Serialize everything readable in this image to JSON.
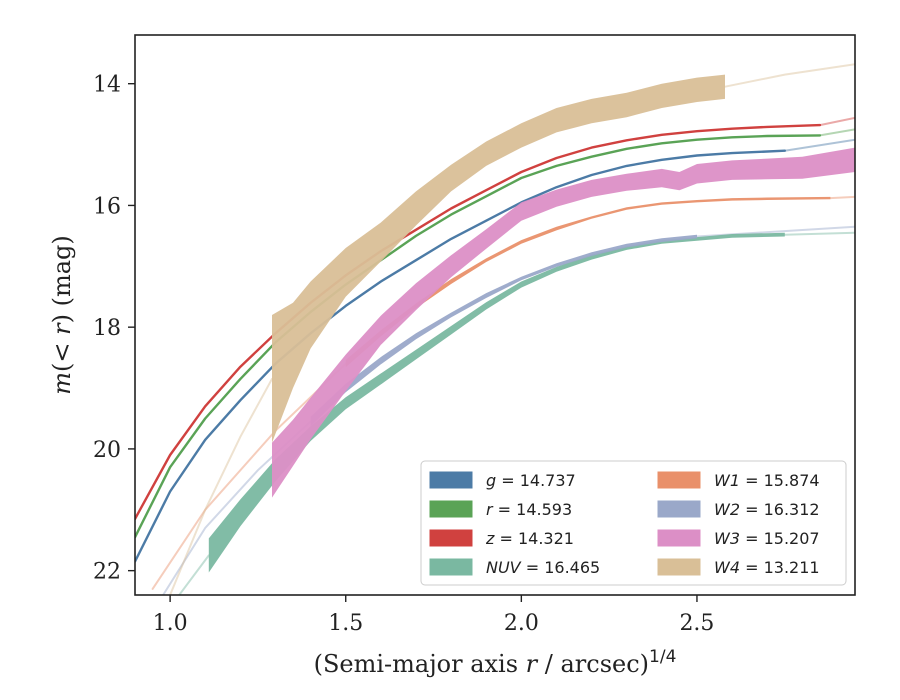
{
  "chart_data": {
    "type": "line",
    "xlabel": "(Semi-major axis r / arcsec)^{1/4}",
    "xlabel_main": "(Semi-major axis ",
    "xlabel_var": "r",
    "xlabel_unit": " / arcsec)",
    "xlabel_sup": "1/4",
    "ylabel": "m(< r) (mag)",
    "ylabel_main": "m",
    "ylabel_paren": "(< ",
    "ylabel_var": "r",
    "ylabel_rest": ") (mag)",
    "xlim": [
      0.9,
      2.95
    ],
    "ylim": [
      22.4,
      13.2
    ],
    "y_inverted": true,
    "x_ticks": [
      1.0,
      1.5,
      2.0,
      2.5
    ],
    "x_tick_labels": [
      "1.0",
      "1.5",
      "2.0",
      "2.5"
    ],
    "y_ticks": [
      14,
      16,
      18,
      20,
      22
    ],
    "y_tick_labels": [
      "14",
      "16",
      "18",
      "20",
      "22"
    ],
    "grid": false,
    "legend_position": "lower-right",
    "series": [
      {
        "name": "g = 14.737",
        "band": "g",
        "mag": "14.737",
        "color": "#4c7ba6",
        "x": [
          0.9,
          1.0,
          1.1,
          1.2,
          1.3,
          1.4,
          1.5,
          1.6,
          1.7,
          1.8,
          1.9,
          2.0,
          2.1,
          2.2,
          2.3,
          2.4,
          2.5,
          2.6,
          2.75
        ],
        "y": [
          21.85,
          20.7,
          19.85,
          19.2,
          18.6,
          18.1,
          17.65,
          17.25,
          16.9,
          16.55,
          16.25,
          15.95,
          15.7,
          15.5,
          15.35,
          15.25,
          15.18,
          15.14,
          15.1
        ],
        "faint_x": [
          2.75,
          2.95
        ],
        "faint_y": [
          15.1,
          14.92
        ]
      },
      {
        "name": "r = 14.593",
        "band": "r",
        "mag": "14.593",
        "color": "#5aa356",
        "x": [
          0.9,
          1.0,
          1.1,
          1.2,
          1.3,
          1.4,
          1.5,
          1.6,
          1.7,
          1.8,
          1.9,
          2.0,
          2.1,
          2.2,
          2.3,
          2.4,
          2.5,
          2.6,
          2.7,
          2.85
        ],
        "y": [
          21.45,
          20.3,
          19.5,
          18.85,
          18.25,
          17.75,
          17.3,
          16.9,
          16.5,
          16.15,
          15.85,
          15.55,
          15.35,
          15.2,
          15.07,
          14.98,
          14.92,
          14.88,
          14.86,
          14.85
        ],
        "faint_x": [
          2.85,
          2.95
        ],
        "faint_y": [
          14.85,
          14.75
        ]
      },
      {
        "name": "z = 14.321",
        "band": "z",
        "mag": "14.321",
        "color": "#d0413f",
        "x": [
          0.9,
          1.0,
          1.1,
          1.2,
          1.3,
          1.4,
          1.5,
          1.6,
          1.7,
          1.8,
          1.9,
          2.0,
          2.1,
          2.2,
          2.3,
          2.4,
          2.5,
          2.6,
          2.7,
          2.85
        ],
        "y": [
          21.15,
          20.1,
          19.3,
          18.65,
          18.1,
          17.6,
          17.15,
          16.75,
          16.4,
          16.05,
          15.75,
          15.45,
          15.22,
          15.05,
          14.93,
          14.84,
          14.78,
          14.74,
          14.71,
          14.68
        ],
        "faint_x": [
          2.85,
          2.95
        ],
        "faint_y": [
          14.68,
          14.56
        ]
      },
      {
        "name": "NUV = 16.465",
        "band": "NUV",
        "mag": "16.465",
        "color": "#7ab8a1",
        "x": [
          1.11,
          1.2,
          1.3,
          1.4,
          1.5,
          1.6,
          1.7,
          1.8,
          1.9,
          2.0,
          2.1,
          2.2,
          2.3,
          2.4,
          2.5,
          2.6,
          2.75
        ],
        "y": [
          21.75,
          21.05,
          20.35,
          19.75,
          19.25,
          18.85,
          18.45,
          18.05,
          17.65,
          17.3,
          17.05,
          16.85,
          16.7,
          16.6,
          16.55,
          16.5,
          16.48
        ],
        "err": [
          0.28,
          0.22,
          0.18,
          0.12,
          0.1,
          0.09,
          0.08,
          0.07,
          0.06,
          0.05,
          0.04,
          0.04,
          0.03,
          0.03,
          0.03,
          0.03,
          0.03
        ],
        "faint_x": [
          0.9,
          1.0,
          1.11
        ],
        "faint_y": [
          24.0,
          22.6,
          21.75
        ],
        "faint2_x": [
          2.75,
          2.95
        ],
        "faint2_y": [
          16.48,
          16.45
        ]
      },
      {
        "name": "W1 = 15.874",
        "band": "W1",
        "mag": "15.874",
        "color": "#e9906a",
        "x": [
          1.5,
          1.6,
          1.7,
          1.8,
          1.9,
          2.0,
          2.1,
          2.2,
          2.3,
          2.4,
          2.5,
          2.6,
          2.7,
          2.88
        ],
        "y": [
          18.6,
          18.1,
          17.65,
          17.25,
          16.9,
          16.6,
          16.38,
          16.2,
          16.05,
          15.97,
          15.93,
          15.9,
          15.89,
          15.88
        ],
        "err": [
          0.06,
          0.05,
          0.04,
          0.04,
          0.03,
          0.03,
          0.03,
          0.02,
          0.02,
          0.02,
          0.02,
          0.02,
          0.02,
          0.02
        ],
        "faint_x": [
          0.95,
          1.1,
          1.3,
          1.5
        ],
        "faint_y": [
          22.3,
          21.0,
          19.7,
          18.6
        ],
        "faint2_x": [
          2.88,
          2.95
        ],
        "faint2_y": [
          15.88,
          15.86
        ]
      },
      {
        "name": "W2 = 16.312",
        "band": "W2",
        "mag": "16.312",
        "color": "#9aa8c9",
        "x": [
          1.4,
          1.5,
          1.6,
          1.7,
          1.8,
          1.9,
          2.0,
          2.1,
          2.2,
          2.3,
          2.4,
          2.5
        ],
        "y": [
          19.55,
          19.0,
          18.55,
          18.15,
          17.8,
          17.48,
          17.2,
          16.98,
          16.8,
          16.66,
          16.57,
          16.51
        ],
        "err": [
          0.08,
          0.07,
          0.06,
          0.05,
          0.04,
          0.04,
          0.03,
          0.03,
          0.03,
          0.03,
          0.03,
          0.03
        ],
        "faint_x": [
          0.98,
          1.1,
          1.25,
          1.4
        ],
        "faint_y": [
          22.4,
          21.3,
          20.35,
          19.55
        ],
        "faint2_x": [
          2.5,
          2.95
        ],
        "faint2_y": [
          16.51,
          16.35
        ]
      },
      {
        "name": "W3 = 15.207",
        "band": "W3",
        "mag": "15.207",
        "color": "#dc8fc6",
        "x": [
          1.29,
          1.35,
          1.4,
          1.5,
          1.6,
          1.7,
          1.8,
          1.9,
          2.0,
          2.1,
          2.2,
          2.3,
          2.4,
          2.45,
          2.5,
          2.6,
          2.7,
          2.8,
          2.95
        ],
        "y": [
          20.35,
          19.9,
          19.5,
          18.75,
          18.05,
          17.5,
          17.0,
          16.55,
          16.1,
          15.88,
          15.72,
          15.62,
          15.55,
          15.6,
          15.48,
          15.42,
          15.4,
          15.38,
          15.25
        ],
        "err": [
          0.45,
          0.38,
          0.34,
          0.3,
          0.24,
          0.22,
          0.18,
          0.16,
          0.15,
          0.14,
          0.14,
          0.14,
          0.15,
          0.15,
          0.16,
          0.16,
          0.17,
          0.18,
          0.2
        ]
      },
      {
        "name": "W4 = 13.211",
        "band": "W4",
        "mag": "13.211",
        "color": "#d9bf97",
        "x": [
          1.29,
          1.35,
          1.4,
          1.5,
          1.6,
          1.7,
          1.8,
          1.9,
          2.0,
          2.1,
          2.2,
          2.3,
          2.4,
          2.5,
          2.58
        ],
        "y": [
          18.85,
          18.3,
          17.8,
          17.1,
          16.6,
          16.05,
          15.55,
          15.15,
          14.85,
          14.6,
          14.45,
          14.35,
          14.2,
          14.1,
          14.05
        ],
        "err": [
          1.05,
          0.7,
          0.55,
          0.4,
          0.32,
          0.28,
          0.22,
          0.2,
          0.2,
          0.2,
          0.2,
          0.2,
          0.2,
          0.2,
          0.2
        ],
        "faint_x": [
          1.0,
          1.1,
          1.2,
          1.29
        ],
        "faint_y": [
          22.4,
          21.0,
          19.8,
          18.85
        ],
        "faint2_x": [
          2.58,
          2.75,
          2.95
        ],
        "faint2_y": [
          14.05,
          13.85,
          13.68
        ]
      }
    ]
  }
}
